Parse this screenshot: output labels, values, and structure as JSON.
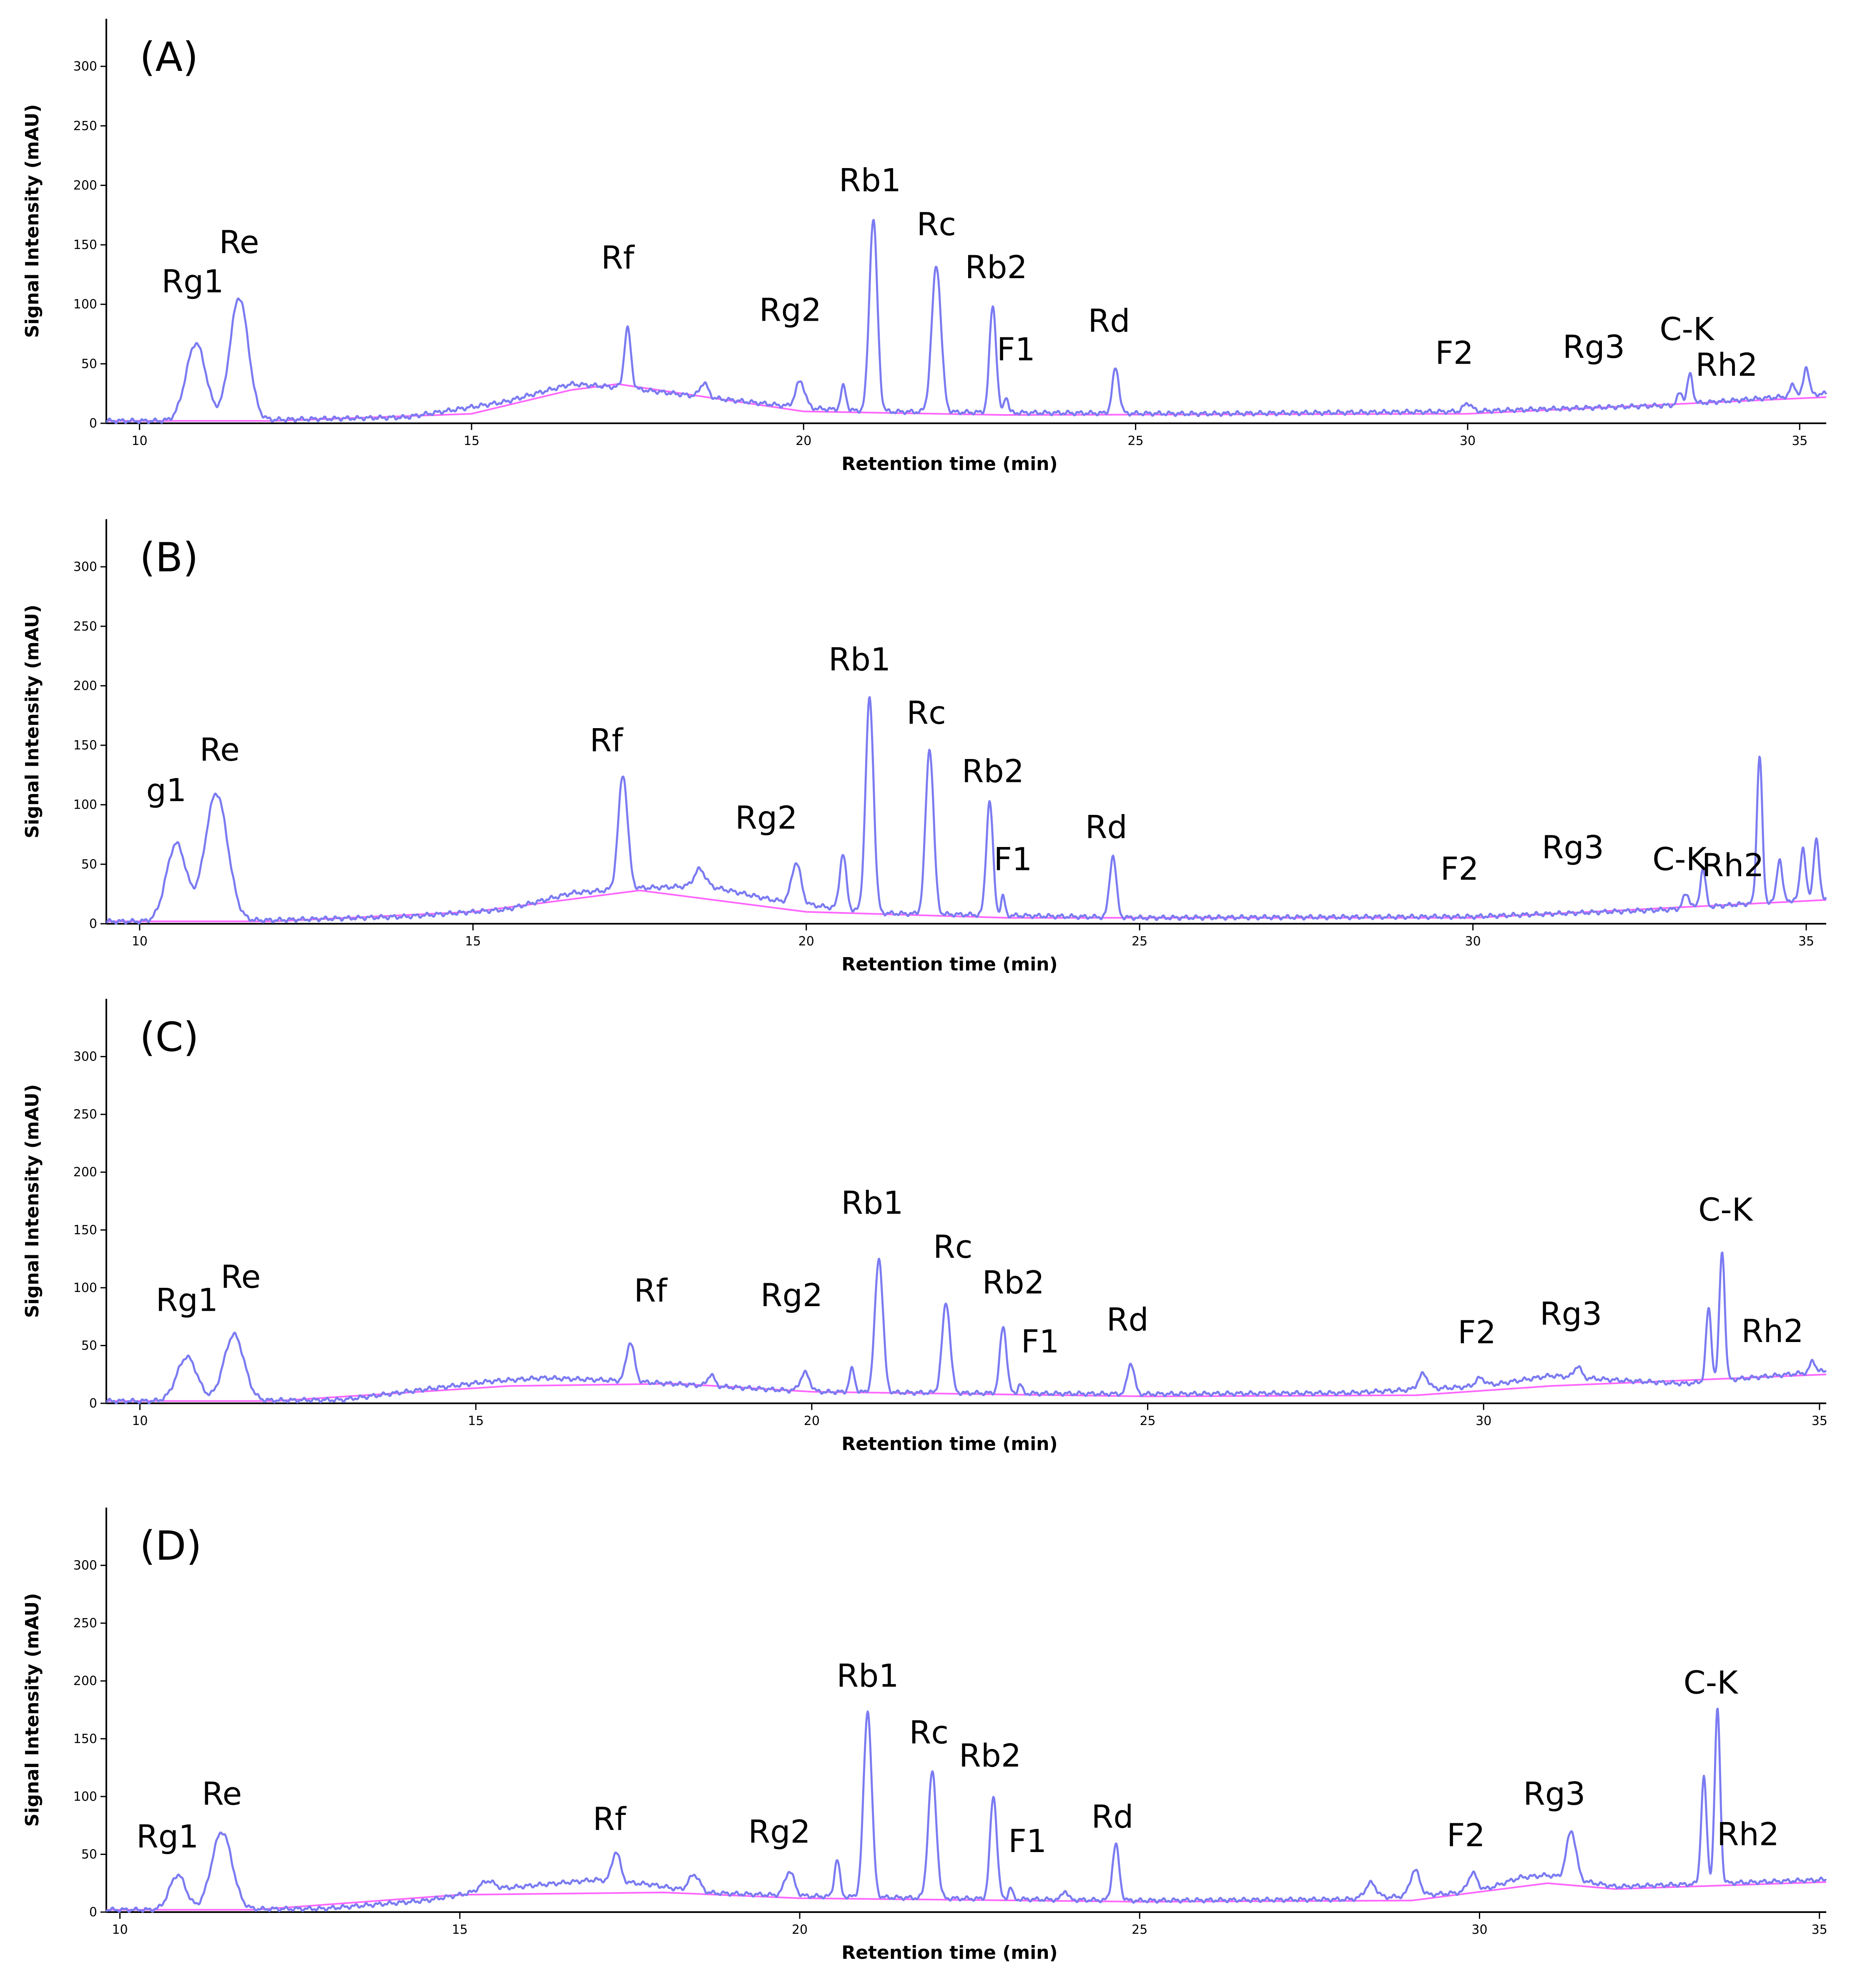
{
  "colors": {
    "signal": "#7b7bf2",
    "baseline": "#ff66ff",
    "axis": "#000000"
  },
  "chart_data": [
    {
      "type": "line",
      "panel_label": "(A)",
      "xlabel": "Retention time (min)",
      "ylabel": "Signal Intensity (mAU)",
      "xlim": [
        9.5,
        35.4
      ],
      "ylim": [
        0,
        340
      ],
      "x_ticks": [
        "10",
        "15",
        "20",
        "25",
        "30",
        "35"
      ],
      "y_ticks": [
        "0",
        "50",
        "100",
        "150",
        "200",
        "250",
        "300"
      ],
      "base": [
        [
          9.5,
          2
        ],
        [
          10.5,
          2
        ],
        [
          12,
          3
        ],
        [
          14,
          5
        ],
        [
          15.5,
          18
        ],
        [
          16.5,
          33
        ],
        [
          17.3,
          30
        ],
        [
          18.5,
          22
        ],
        [
          20,
          13
        ],
        [
          21,
          10
        ],
        [
          23,
          9
        ],
        [
          26,
          8
        ],
        [
          30,
          10
        ],
        [
          33,
          15
        ],
        [
          35.4,
          25
        ]
      ],
      "peaks": [
        [
          10.85,
          65,
          0.15
        ],
        [
          11.5,
          103,
          0.14
        ],
        [
          17.35,
          50,
          0.05
        ],
        [
          18.5,
          12,
          0.06
        ],
        [
          19.95,
          22,
          0.07
        ],
        [
          20.6,
          20,
          0.04
        ],
        [
          21.05,
          162,
          0.06
        ],
        [
          22.0,
          123,
          0.07
        ],
        [
          22.85,
          90,
          0.05
        ],
        [
          23.05,
          14,
          0.03
        ],
        [
          24.7,
          38,
          0.05
        ],
        [
          30.0,
          7,
          0.06
        ],
        [
          33.2,
          10,
          0.04
        ],
        [
          33.35,
          25,
          0.04
        ],
        [
          34.9,
          10,
          0.04
        ],
        [
          35.1,
          24,
          0.04
        ]
      ],
      "baseline_line": [
        [
          9.5,
          2
        ],
        [
          12,
          2
        ],
        [
          15,
          8
        ],
        [
          16.5,
          28
        ],
        [
          17.2,
          33
        ],
        [
          20,
          10
        ],
        [
          23,
          7
        ],
        [
          30,
          8
        ],
        [
          35.4,
          22
        ]
      ],
      "peak_labels": [
        {
          "name": "Rg1",
          "x": 10.8,
          "y": 110
        },
        {
          "name": "Re",
          "x": 11.5,
          "y": 143
        },
        {
          "name": "Rf",
          "x": 17.2,
          "y": 130
        },
        {
          "name": "Rg2",
          "x": 19.8,
          "y": 86
        },
        {
          "name": "Rb1",
          "x": 21.0,
          "y": 195
        },
        {
          "name": "Rc",
          "x": 22.0,
          "y": 158
        },
        {
          "name": "Rb2",
          "x": 22.9,
          "y": 122
        },
        {
          "name": "F1",
          "x": 23.2,
          "y": 53
        },
        {
          "name": "Rd",
          "x": 24.6,
          "y": 77
        },
        {
          "name": "F2",
          "x": 29.8,
          "y": 50
        },
        {
          "name": "Rg3",
          "x": 31.9,
          "y": 55
        },
        {
          "name": "C-K",
          "x": 33.3,
          "y": 70
        },
        {
          "name": "Rh2",
          "x": 33.9,
          "y": 40
        }
      ]
    },
    {
      "type": "line",
      "panel_label": "(B)",
      "xlabel": "Retention time (min)",
      "ylabel": "Signal Intensity (mAU)",
      "xlim": [
        9.5,
        35.3
      ],
      "ylim": [
        0,
        340
      ],
      "x_ticks": [
        "10",
        "15",
        "20",
        "25",
        "30",
        "35"
      ],
      "y_ticks": [
        "0",
        "50",
        "100",
        "150",
        "200",
        "250",
        "300"
      ],
      "base": [
        [
          9.5,
          2
        ],
        [
          10.2,
          2
        ],
        [
          12,
          3
        ],
        [
          14,
          6
        ],
        [
          15.5,
          12
        ],
        [
          16.5,
          26
        ],
        [
          17.5,
          30
        ],
        [
          18.5,
          32
        ],
        [
          19.5,
          20
        ],
        [
          21,
          9
        ],
        [
          23,
          7
        ],
        [
          25,
          5
        ],
        [
          30,
          6
        ],
        [
          33,
          12
        ],
        [
          35.3,
          22
        ]
      ],
      "peaks": [
        [
          10.55,
          65,
          0.15
        ],
        [
          11.15,
          107,
          0.17
        ],
        [
          17.25,
          96,
          0.07
        ],
        [
          18.4,
          14,
          0.08
        ],
        [
          19.85,
          34,
          0.07
        ],
        [
          20.55,
          46,
          0.05
        ],
        [
          20.95,
          180,
          0.06
        ],
        [
          21.85,
          139,
          0.06
        ],
        [
          22.75,
          96,
          0.05
        ],
        [
          22.95,
          16,
          0.03
        ],
        [
          24.6,
          52,
          0.05
        ],
        [
          33.2,
          12,
          0.05
        ],
        [
          33.45,
          32,
          0.04
        ],
        [
          34.3,
          124,
          0.04
        ],
        [
          34.6,
          36,
          0.04
        ],
        [
          34.95,
          44,
          0.04
        ],
        [
          35.15,
          50,
          0.04
        ]
      ],
      "baseline_line": [
        [
          9.5,
          2
        ],
        [
          12,
          2
        ],
        [
          15,
          10
        ],
        [
          17.5,
          28
        ],
        [
          20,
          10
        ],
        [
          23,
          5
        ],
        [
          30,
          5
        ],
        [
          35.3,
          20
        ]
      ],
      "peak_labels": [
        {
          "name": "g1",
          "x": 10.4,
          "y": 103
        },
        {
          "name": "Re",
          "x": 11.2,
          "y": 137
        },
        {
          "name": "Rf",
          "x": 17.0,
          "y": 145
        },
        {
          "name": "Rg2",
          "x": 19.4,
          "y": 80
        },
        {
          "name": "Rb1",
          "x": 20.8,
          "y": 213
        },
        {
          "name": "Rc",
          "x": 21.8,
          "y": 168
        },
        {
          "name": "Rb2",
          "x": 22.8,
          "y": 119
        },
        {
          "name": "F1",
          "x": 23.1,
          "y": 45
        },
        {
          "name": "Rd",
          "x": 24.5,
          "y": 72
        },
        {
          "name": "F2",
          "x": 29.8,
          "y": 37
        },
        {
          "name": "Rg3",
          "x": 31.5,
          "y": 55
        },
        {
          "name": "C-K",
          "x": 33.1,
          "y": 45
        },
        {
          "name": "Rh2",
          "x": 33.9,
          "y": 40
        }
      ]
    },
    {
      "type": "line",
      "panel_label": "(C)",
      "xlabel": "Retention time (min)",
      "ylabel": "Signal Intensity (mAU)",
      "xlim": [
        9.5,
        35.1
      ],
      "ylim": [
        0,
        350
      ],
      "x_ticks": [
        "10",
        "15",
        "20",
        "25",
        "30",
        "35"
      ],
      "y_ticks": [
        "0",
        "50",
        "100",
        "150",
        "200",
        "250",
        "300"
      ],
      "base": [
        [
          9.5,
          2
        ],
        [
          10.5,
          2
        ],
        [
          13,
          3
        ],
        [
          15.2,
          19
        ],
        [
          16,
          22
        ],
        [
          17,
          20
        ],
        [
          18.5,
          15
        ],
        [
          20,
          10
        ],
        [
          22,
          9
        ],
        [
          25,
          8
        ],
        [
          28,
          9
        ],
        [
          29,
          12
        ],
        [
          30,
          15
        ],
        [
          31,
          24
        ],
        [
          32,
          20
        ],
        [
          33,
          17
        ],
        [
          35.1,
          28
        ]
      ],
      "peaks": [
        [
          10.7,
          38,
          0.15
        ],
        [
          11.4,
          57,
          0.15
        ],
        [
          17.3,
          34,
          0.06
        ],
        [
          18.5,
          10,
          0.05
        ],
        [
          19.9,
          16,
          0.07
        ],
        [
          20.6,
          20,
          0.04
        ],
        [
          21.0,
          116,
          0.06
        ],
        [
          22.0,
          78,
          0.06
        ],
        [
          22.85,
          58,
          0.05
        ],
        [
          23.1,
          8,
          0.03
        ],
        [
          24.75,
          27,
          0.05
        ],
        [
          29.1,
          13,
          0.07
        ],
        [
          29.95,
          7,
          0.07
        ],
        [
          31.4,
          10,
          0.05
        ],
        [
          33.35,
          63,
          0.04
        ],
        [
          33.55,
          112,
          0.04
        ],
        [
          34.9,
          10,
          0.04
        ]
      ],
      "baseline_line": [
        [
          9.5,
          2
        ],
        [
          12,
          2
        ],
        [
          15.5,
          15
        ],
        [
          18,
          17
        ],
        [
          20,
          10
        ],
        [
          25,
          6
        ],
        [
          29,
          7
        ],
        [
          31,
          15
        ],
        [
          35.1,
          25
        ]
      ],
      "peak_labels": [
        {
          "name": "Rg1",
          "x": 10.7,
          "y": 80
        },
        {
          "name": "Re",
          "x": 11.5,
          "y": 100
        },
        {
          "name": "Rf",
          "x": 17.6,
          "y": 88
        },
        {
          "name": "Rg2",
          "x": 19.7,
          "y": 84
        },
        {
          "name": "Rb1",
          "x": 20.9,
          "y": 164
        },
        {
          "name": "Rc",
          "x": 22.1,
          "y": 126
        },
        {
          "name": "Rb2",
          "x": 23.0,
          "y": 95
        },
        {
          "name": "F1",
          "x": 23.4,
          "y": 44
        },
        {
          "name": "Rd",
          "x": 24.7,
          "y": 63
        },
        {
          "name": "F2",
          "x": 29.9,
          "y": 52
        },
        {
          "name": "Rg3",
          "x": 31.3,
          "y": 68
        },
        {
          "name": "C-K",
          "x": 33.6,
          "y": 158
        },
        {
          "name": "Rh2",
          "x": 34.3,
          "y": 53
        }
      ]
    },
    {
      "type": "line",
      "panel_label": "(D)",
      "xlabel": "Retention time (min)",
      "ylabel": "Signal Intensity (mAU)",
      "xlim": [
        9.8,
        35.1
      ],
      "ylim": [
        0,
        350
      ],
      "x_ticks": [
        "10",
        "15",
        "20",
        "25",
        "30",
        "35"
      ],
      "y_ticks": [
        "0",
        "50",
        "100",
        "150",
        "200",
        "250",
        "300"
      ],
      "base": [
        [
          9.8,
          2
        ],
        [
          10.5,
          2
        ],
        [
          13,
          3
        ],
        [
          14.5,
          10
        ],
        [
          15.5,
          20
        ],
        [
          17,
          28
        ],
        [
          17.8,
          24
        ],
        [
          18.5,
          17
        ],
        [
          20,
          14
        ],
        [
          22,
          12
        ],
        [
          25,
          10
        ],
        [
          28,
          11
        ],
        [
          29,
          14
        ],
        [
          30,
          18
        ],
        [
          30.6,
          30
        ],
        [
          31,
          32
        ],
        [
          32,
          22
        ],
        [
          35.1,
          28
        ]
      ],
      "peaks": [
        [
          10.85,
          30,
          0.12
        ],
        [
          11.5,
          67,
          0.15
        ],
        [
          15.4,
          8,
          0.1
        ],
        [
          17.3,
          26,
          0.06
        ],
        [
          18.45,
          15,
          0.08
        ],
        [
          19.85,
          21,
          0.07
        ],
        [
          20.55,
          32,
          0.04
        ],
        [
          21.0,
          161,
          0.06
        ],
        [
          21.95,
          109,
          0.06
        ],
        [
          22.85,
          89,
          0.05
        ],
        [
          23.1,
          10,
          0.03
        ],
        [
          23.9,
          8,
          0.04
        ],
        [
          24.65,
          48,
          0.05
        ],
        [
          28.4,
          13,
          0.08
        ],
        [
          29.05,
          22,
          0.07
        ],
        [
          29.9,
          16,
          0.07
        ],
        [
          31.35,
          42,
          0.07
        ],
        [
          33.3,
          92,
          0.04
        ],
        [
          33.5,
          150,
          0.04
        ]
      ],
      "baseline_line": [
        [
          9.8,
          2
        ],
        [
          12,
          2
        ],
        [
          15,
          15
        ],
        [
          18,
          17
        ],
        [
          20,
          12
        ],
        [
          25,
          9
        ],
        [
          29,
          10
        ],
        [
          31,
          25
        ],
        [
          32,
          20
        ],
        [
          35.1,
          26
        ]
      ],
      "peak_labels": [
        {
          "name": "Rg1",
          "x": 10.7,
          "y": 56
        },
        {
          "name": "Re",
          "x": 11.5,
          "y": 93
        },
        {
          "name": "Rf",
          "x": 17.2,
          "y": 71
        },
        {
          "name": "Rg2",
          "x": 19.7,
          "y": 60
        },
        {
          "name": "Rb1",
          "x": 21.0,
          "y": 195
        },
        {
          "name": "Rc",
          "x": 21.9,
          "y": 146
        },
        {
          "name": "Rb2",
          "x": 22.8,
          "y": 126
        },
        {
          "name": "F1",
          "x": 23.35,
          "y": 52
        },
        {
          "name": "Rd",
          "x": 24.6,
          "y": 73
        },
        {
          "name": "F2",
          "x": 29.8,
          "y": 57
        },
        {
          "name": "Rg3",
          "x": 31.1,
          "y": 93
        },
        {
          "name": "C-K",
          "x": 33.4,
          "y": 189
        },
        {
          "name": "Rh2",
          "x": 33.95,
          "y": 58
        }
      ]
    }
  ]
}
